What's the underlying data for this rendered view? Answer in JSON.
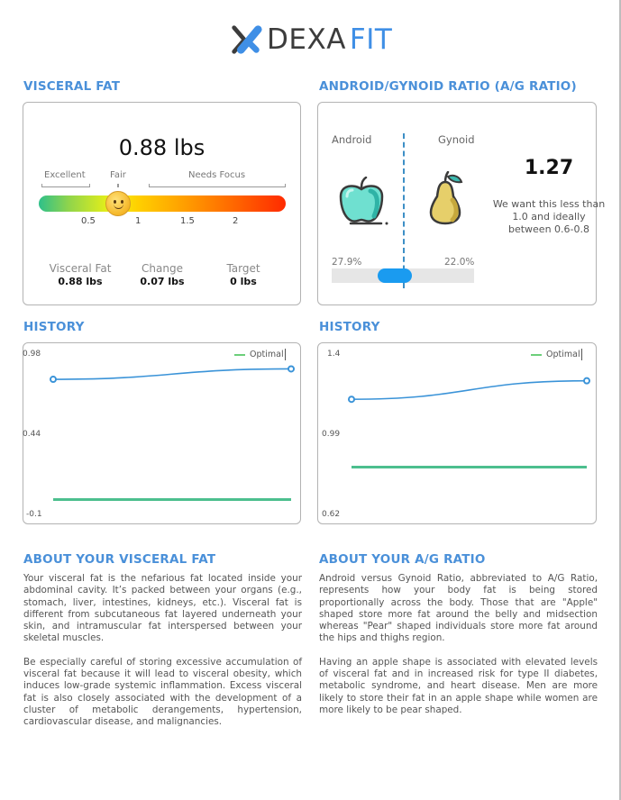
{
  "brand": {
    "name_part1": "DEXA",
    "name_part2": "FIT",
    "accent": "#3f8fe6"
  },
  "visceral_fat": {
    "title": "VISCERAL FAT",
    "value": "0.88 lbs",
    "gauge": {
      "zones": [
        "Excellent",
        "Fair",
        "Needs Focus"
      ],
      "ticks": [
        "0.5",
        "1",
        "1.5",
        "2"
      ],
      "marker_value": 0.88,
      "marker_icon": "smiley-face-icon"
    },
    "stats": [
      {
        "label": "Visceral Fat",
        "value": "0.88 lbs"
      },
      {
        "label": "Change",
        "value": "0.07 lbs"
      },
      {
        "label": "Target",
        "value": "0 lbs"
      }
    ]
  },
  "ag_ratio": {
    "title": "ANDROID/GYNOID RATIO (A/G RATIO)",
    "android_label": "Android",
    "gynoid_label": "Gynoid",
    "android_icon": "apple-icon",
    "gynoid_icon": "pear-icon",
    "ratio": "1.27",
    "note": "We want this less than 1.0 and ideally between 0.6-0.8",
    "android_pct": "27.9%",
    "gynoid_pct": "22.0%"
  },
  "chart_data": [
    {
      "type": "line",
      "title": "HISTORY",
      "legend": [
        "Optimal"
      ],
      "legend_position": "top-right",
      "y_ticks": [
        "0.98",
        "0.44",
        "-0.1"
      ],
      "ylim": [
        -0.1,
        0.98
      ],
      "series": [
        {
          "name": "Visceral Fat",
          "color": "#3a93d8",
          "values": [
            0.81,
            0.88
          ]
        },
        {
          "name": "Optimal",
          "color": "#4cbf8e",
          "values": [
            0.0,
            0.0
          ]
        }
      ]
    },
    {
      "type": "line",
      "title": "HISTORY",
      "legend": [
        "Optimal"
      ],
      "legend_position": "top-right",
      "y_ticks": [
        "1.4",
        "0.99",
        "0.62"
      ],
      "ylim": [
        0.62,
        1.4
      ],
      "series": [
        {
          "name": "A/G Ratio",
          "color": "#3a93d8",
          "values": [
            1.18,
            1.27
          ]
        },
        {
          "name": "Optimal",
          "color": "#4cbf8e",
          "values": [
            0.85,
            0.85
          ]
        }
      ]
    }
  ],
  "about_visceral": {
    "title": "ABOUT YOUR VISCERAL FAT",
    "paragraphs": [
      "Your visceral fat is the nefarious fat located inside your abdominal cavity. It’s packed between your organs (e.g., stomach, liver, intestines, kidneys, etc.). Visceral fat is different from subcutaneous fat layered underneath your skin, and intramuscular fat interspersed between your skeletal muscles.",
      "Be especially careful of storing excessive accumulation of visceral fat because it will lead to visceral obesity, which induces low-grade systemic inflammation. Excess visceral fat is also closely associated with the development of a cluster of metabolic derangements, hypertension, cardiovascular disease, and malignancies."
    ]
  },
  "about_ag": {
    "title": "ABOUT YOUR A/G RATIO",
    "paragraphs": [
      "Android versus Gynoid Ratio, abbreviated to A/G Ratio, represents how your body fat is being stored proportionally across the body. Those that are \"Apple\" shaped store more fat around the belly and midsection whereas \"Pear\" shaped individuals store more fat around the hips and thighs region.",
      "Having an apple shape is associated with elevated levels of visceral fat and in increased risk for type II diabetes, metabolic syndrome, and heart disease. Men are more likely to store their fat in an apple shape while women are more likely to be pear shaped."
    ]
  }
}
